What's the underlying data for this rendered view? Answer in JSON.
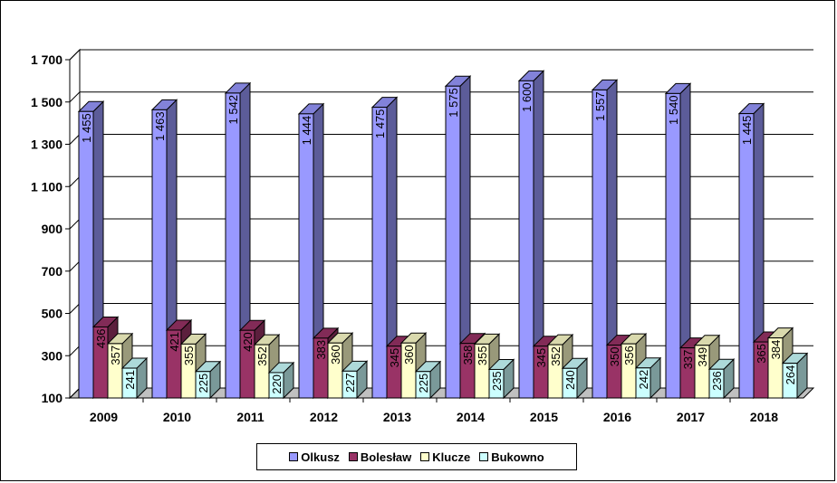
{
  "chart_data": {
    "type": "bar",
    "categories": [
      "2009",
      "2010",
      "2011",
      "2012",
      "2013",
      "2014",
      "2015",
      "2016",
      "2017",
      "2018"
    ],
    "series": [
      {
        "name": "Olkusz",
        "values": [
          1455,
          1463,
          1542,
          1444,
          1475,
          1575,
          1600,
          1557,
          1540,
          1445
        ],
        "labels": [
          "1 455",
          "1 463",
          "1 542",
          "1 444",
          "1 475",
          "1 575",
          "1 600",
          "1 557",
          "1 540",
          "1 445"
        ],
        "color": "#9999ff"
      },
      {
        "name": "Bolesław",
        "values": [
          436,
          421,
          420,
          383,
          345,
          358,
          345,
          350,
          337,
          365
        ],
        "labels": [
          "436",
          "421",
          "420",
          "383",
          "345",
          "358",
          "345",
          "350",
          "337",
          "365"
        ],
        "color": "#993366"
      },
      {
        "name": "Klucze",
        "values": [
          357,
          355,
          352,
          360,
          360,
          355,
          352,
          356,
          349,
          384
        ],
        "labels": [
          "357",
          "355",
          "352",
          "360",
          "360",
          "355",
          "352",
          "356",
          "349",
          "384"
        ],
        "color": "#ffffcc"
      },
      {
        "name": "Bukowno",
        "values": [
          241,
          225,
          220,
          227,
          225,
          235,
          240,
          242,
          236,
          264
        ],
        "labels": [
          "241",
          "225",
          "220",
          "227",
          "225",
          "235",
          "240",
          "242",
          "236",
          "264"
        ],
        "color": "#ccffff"
      }
    ],
    "yticks": [
      100,
      300,
      500,
      700,
      900,
      1100,
      1300,
      1500,
      1700
    ],
    "ytick_labels": [
      "100",
      "300",
      "500",
      "700",
      "900",
      "1 100",
      "1 300",
      "1 500",
      "1 700"
    ],
    "ylim": [
      100,
      1700
    ],
    "grid": true,
    "legend": "bottom",
    "title": "",
    "xlabel": "",
    "ylabel": ""
  }
}
